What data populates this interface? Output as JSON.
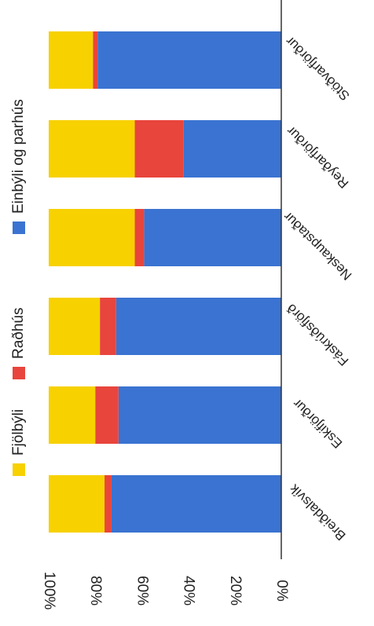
{
  "chart_data": {
    "type": "bar",
    "stacked": true,
    "orientation": "horizontal",
    "categories": [
      "Breiðdalsvík",
      "Eskifjörður",
      "Fáskrúðsfjörð",
      "Neskaupstaður",
      "Reyðarfjörður",
      "Stöðvarfjörður"
    ],
    "series": [
      {
        "name": "Einbýli og parhús",
        "color": "#3a73d1",
        "values": [
          73,
          70,
          71,
          59,
          42,
          79
        ]
      },
      {
        "name": "Raðhús",
        "color": "#e8453c",
        "values": [
          3,
          10,
          7,
          4,
          21,
          2
        ]
      },
      {
        "name": "Fjölbýli",
        "color": "#f7d100",
        "values": [
          24,
          20,
          22,
          37,
          37,
          19
        ]
      }
    ],
    "value_axis": {
      "range": [
        0,
        100
      ],
      "ticks": [
        "0%",
        "20%",
        "40%",
        "60%",
        "80%",
        "100%"
      ]
    },
    "legend_position": "top",
    "grid": false
  }
}
